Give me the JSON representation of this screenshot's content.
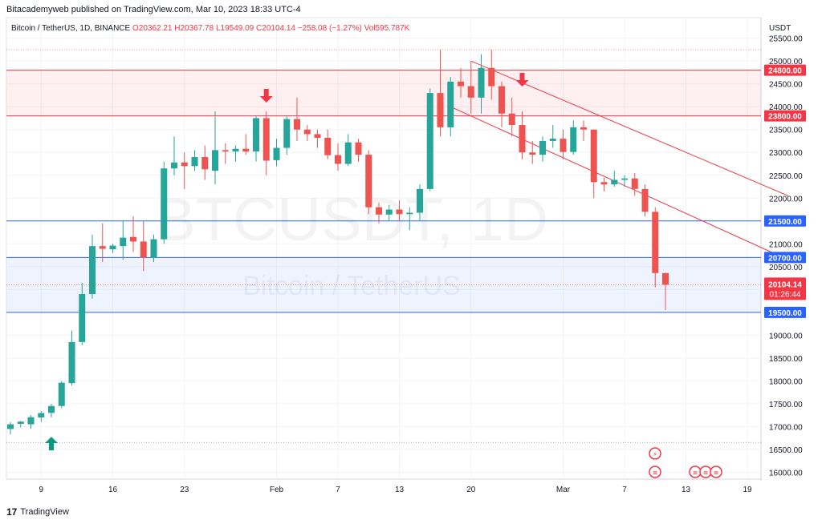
{
  "header": {
    "publisher": "Bitacademyweb published on TradingView.com, Mar 10, 2023 18:33 UTC-4"
  },
  "footer": {
    "brand": "TradingView"
  },
  "chart_data": {
    "type": "candlestick",
    "symbol_line": {
      "name": "Bitcoin / TetherUS, 1D, BINANCE",
      "o": "O20362.21",
      "h": "H20367.78",
      "l": "L19549.09",
      "c": "C20104.14",
      "chg": "−258.08 (−1.27%)",
      "vol": "Vol595.787K"
    },
    "watermark": {
      "ticker": "BTCUSDT, 1D",
      "name": "Bitcoin / TetherUS"
    },
    "y_axis": {
      "unit": "USDT",
      "range": [
        15850,
        25950
      ],
      "ticks": [
        "16000.00",
        "16500.00",
        "17000.00",
        "17500.00",
        "18000.00",
        "18500.00",
        "19000.00",
        "19500.00",
        "20000.00",
        "20500.00",
        "21000.00",
        "21500.00",
        "22000.00",
        "22500.00",
        "23000.00",
        "23500.00",
        "24000.00",
        "24500.00",
        "25000.00",
        "25500.00"
      ]
    },
    "x_axis": {
      "ticks": [
        {
          "label": "9",
          "i": 3
        },
        {
          "label": "16",
          "i": 10
        },
        {
          "label": "23",
          "i": 17
        },
        {
          "label": "Feb",
          "i": 26
        },
        {
          "label": "7",
          "i": 32
        },
        {
          "label": "13",
          "i": 38
        },
        {
          "label": "20",
          "i": 45
        },
        {
          "label": "Mar",
          "i": 54
        },
        {
          "label": "7",
          "i": 60
        },
        {
          "label": "13",
          "i": 66
        },
        {
          "label": "19",
          "i": 72
        }
      ]
    },
    "candles": [
      [
        16947,
        17050,
        16830,
        17100
      ],
      [
        17060,
        17108,
        16980,
        17125
      ],
      [
        17050,
        17205,
        16950,
        17250
      ],
      [
        17200,
        17295,
        17100,
        17340
      ],
      [
        17300,
        17450,
        17200,
        17500
      ],
      [
        17450,
        17960,
        17400,
        18000
      ],
      [
        17950,
        18850,
        17900,
        19100
      ],
      [
        18850,
        19900,
        18780,
        20150
      ],
      [
        19900,
        20950,
        19800,
        21200
      ],
      [
        20950,
        20890,
        20600,
        21450
      ],
      [
        20880,
        20960,
        20800,
        21000
      ],
      [
        20950,
        21135,
        20650,
        21500
      ],
      [
        21150,
        21050,
        20820,
        21600
      ],
      [
        21050,
        20700,
        20400,
        21500
      ],
      [
        20700,
        21100,
        20600,
        21200
      ],
      [
        21100,
        22650,
        21000,
        22800
      ],
      [
        22650,
        22780,
        22500,
        23350
      ],
      [
        22780,
        22700,
        22200,
        23000
      ],
      [
        22700,
        22900,
        22600,
        23050
      ],
      [
        22900,
        22630,
        22400,
        23150
      ],
      [
        22600,
        23050,
        22300,
        23900
      ],
      [
        23050,
        23020,
        22750,
        23200
      ],
      [
        23020,
        23080,
        22800,
        23150
      ],
      [
        23080,
        23020,
        22950,
        23400
      ],
      [
        23020,
        23750,
        22800,
        23800
      ],
      [
        23750,
        22820,
        22500,
        23900
      ],
      [
        22830,
        23100,
        22700,
        23300
      ],
      [
        23100,
        23730,
        22950,
        23800
      ],
      [
        23730,
        23500,
        23250,
        24200
      ],
      [
        23500,
        23400,
        23250,
        23600
      ],
      [
        23400,
        23320,
        23100,
        23500
      ],
      [
        23320,
        22940,
        22850,
        23500
      ],
      [
        22940,
        22750,
        22600,
        23200
      ],
      [
        22750,
        23220,
        22700,
        23400
      ],
      [
        23220,
        22950,
        22800,
        23300
      ],
      [
        22950,
        21800,
        21650,
        23050
      ],
      [
        21800,
        21640,
        21450,
        21900
      ],
      [
        21640,
        21750,
        21500,
        21850
      ],
      [
        21750,
        21650,
        21500,
        21950
      ],
      [
        21650,
        21680,
        21300,
        21800
      ],
      [
        21680,
        22200,
        21500,
        22300
      ],
      [
        22200,
        24300,
        22150,
        24400
      ],
      [
        24300,
        23550,
        23350,
        25250
      ],
      [
        23550,
        24550,
        23350,
        24650
      ],
      [
        24550,
        24450,
        24200,
        24850
      ],
      [
        24450,
        24200,
        23850,
        25000
      ],
      [
        24200,
        24850,
        23850,
        25150
      ],
      [
        24850,
        24450,
        24150,
        25250
      ],
      [
        24450,
        23850,
        23550,
        24550
      ],
      [
        23850,
        23600,
        23350,
        24200
      ],
      [
        23600,
        23000,
        22850,
        23900
      ],
      [
        23000,
        22950,
        22750,
        23250
      ],
      [
        22950,
        23250,
        22800,
        23350
      ],
      [
        23250,
        23300,
        23100,
        23600
      ],
      [
        23300,
        23010,
        22850,
        23500
      ],
      [
        23010,
        23550,
        22950,
        23700
      ],
      [
        23550,
        23500,
        23250,
        23700
      ],
      [
        23500,
        22350,
        22000,
        23500
      ],
      [
        22350,
        22300,
        22150,
        22450
      ],
      [
        22300,
        22400,
        22250,
        22600
      ],
      [
        22400,
        22430,
        22250,
        22500
      ],
      [
        22430,
        22200,
        22050,
        22550
      ],
      [
        22200,
        21700,
        21600,
        22300
      ],
      [
        21700,
        20360,
        20050,
        21800
      ],
      [
        20360,
        20104,
        19549,
        20368
      ]
    ],
    "zones": [
      {
        "from": 23800,
        "to": 24800,
        "color": "#f23645"
      },
      {
        "from": 19500,
        "to": 20700,
        "color": "#2962ff"
      }
    ],
    "levels": [
      {
        "price": 24800,
        "label": "24800.00",
        "color": "#f23645"
      },
      {
        "price": 23800,
        "label": "23800.00",
        "color": "#f23645"
      },
      {
        "price": 21500,
        "label": "21500.00",
        "color": "#2962ff"
      },
      {
        "price": 20700,
        "label": "20700.00",
        "color": "#2962ff"
      },
      {
        "price": 19500,
        "label": "19500.00",
        "color": "#2962ff"
      }
    ],
    "current": {
      "price": 20104.14,
      "label": "20104.14",
      "timer": "01:26:44"
    },
    "channel_lines": [
      {
        "from": [
          45,
          25000
        ],
        "to": [
          76,
          22050
        ]
      },
      {
        "from": [
          43,
          24000
        ],
        "to": [
          76,
          20650
        ]
      }
    ],
    "arrows": [
      {
        "i": 4,
        "price": 16620,
        "dir": "up",
        "color": "#089981"
      },
      {
        "i": 25,
        "price": 24250,
        "dir": "down",
        "color": "#f23645"
      },
      {
        "i": 50,
        "price": 24600,
        "dir": "down",
        "color": "#f23645"
      }
    ],
    "colors": {
      "up": "#26a69a",
      "down": "#ef5350",
      "grid": "#f0f3fa"
    }
  }
}
